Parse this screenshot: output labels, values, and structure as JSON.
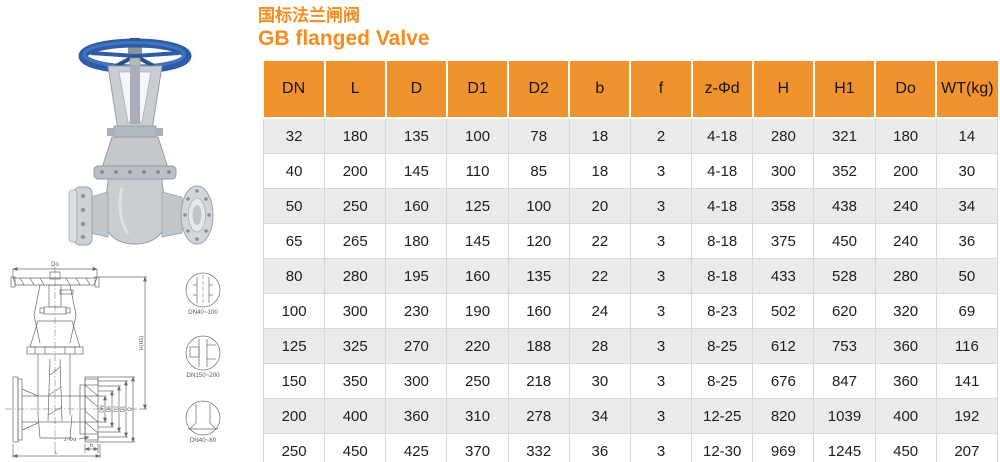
{
  "titles": {
    "zh": "国标法兰闸阀",
    "en": "GB flanged Valve"
  },
  "colors": {
    "accent_orange": "#f68b1e",
    "table_header_bg": "#f0932e",
    "row_alt_bg": "#ebebeb",
    "cell_border": "#d8d8d8",
    "drawing_line": "#6a6a6a",
    "handwheel_blue": "#2d5ca8",
    "valve_steel_gray": "#c9ced3"
  },
  "photo": {
    "description": "gate valve product photo with blue handwheel"
  },
  "drawing": {
    "dims": {
      "do": "Do",
      "h": "H(H1)",
      "dn": "DN",
      "d6": "D6",
      "d2": "D2",
      "d1": "D1",
      "d": "D",
      "z_phi_d": "z-Φd",
      "l": "L",
      "b": "b"
    },
    "details": [
      {
        "label": "DN40~100"
      },
      {
        "label": "DN150~200"
      },
      {
        "label": "DN40~80"
      }
    ]
  },
  "table": {
    "columns": [
      "DN",
      "L",
      "D",
      "D1",
      "D2",
      "b",
      "f",
      "z-Φd",
      "H",
      "H1",
      "Do",
      "WT(kg)"
    ],
    "rows": [
      [
        "32",
        "180",
        "135",
        "100",
        "78",
        "18",
        "2",
        "4-18",
        "280",
        "321",
        "180",
        "14"
      ],
      [
        "40",
        "200",
        "145",
        "110",
        "85",
        "18",
        "3",
        "4-18",
        "300",
        "352",
        "200",
        "30"
      ],
      [
        "50",
        "250",
        "160",
        "125",
        "100",
        "20",
        "3",
        "4-18",
        "358",
        "438",
        "240",
        "34"
      ],
      [
        "65",
        "265",
        "180",
        "145",
        "120",
        "22",
        "3",
        "8-18",
        "375",
        "450",
        "240",
        "36"
      ],
      [
        "80",
        "280",
        "195",
        "160",
        "135",
        "22",
        "3",
        "8-18",
        "433",
        "528",
        "280",
        "50"
      ],
      [
        "100",
        "300",
        "230",
        "190",
        "160",
        "24",
        "3",
        "8-23",
        "502",
        "620",
        "320",
        "69"
      ],
      [
        "125",
        "325",
        "270",
        "220",
        "188",
        "28",
        "3",
        "8-25",
        "612",
        "753",
        "360",
        "116"
      ],
      [
        "150",
        "350",
        "300",
        "250",
        "218",
        "30",
        "3",
        "8-25",
        "676",
        "847",
        "360",
        "141"
      ],
      [
        "200",
        "400",
        "360",
        "310",
        "278",
        "34",
        "3",
        "12-25",
        "820",
        "1039",
        "400",
        "192"
      ],
      [
        "250",
        "450",
        "425",
        "370",
        "332",
        "36",
        "3",
        "12-30",
        "969",
        "1245",
        "450",
        "207"
      ]
    ]
  }
}
